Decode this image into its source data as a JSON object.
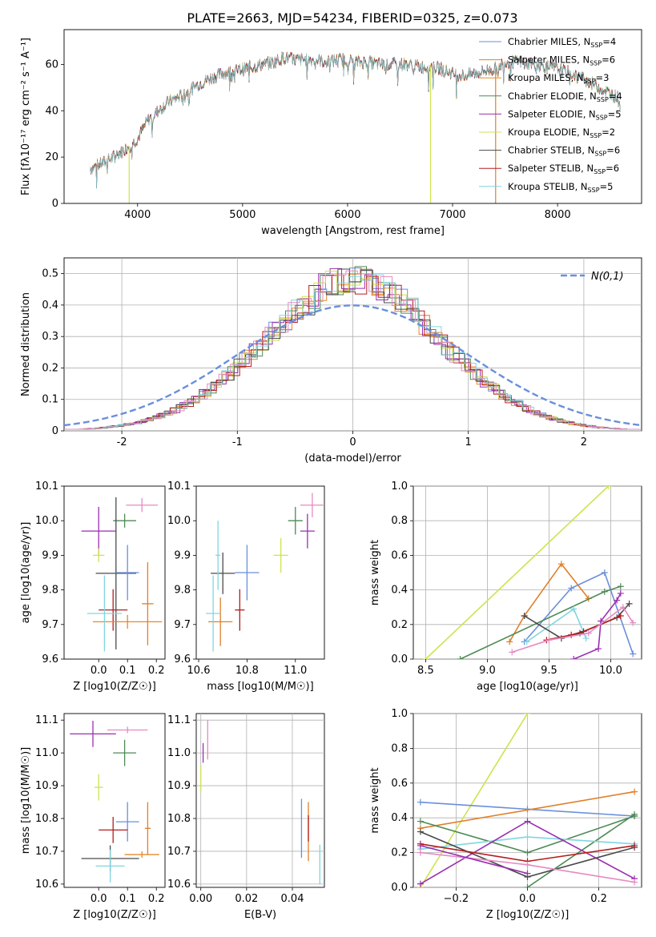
{
  "figure_title": "PLATE=2663, MJD=54234, FIBERID=0325, z=0.073",
  "colors": {
    "chabrier_miles": "#6a8fdc",
    "salpeter_miles": "#e07f2a",
    "kroupa_miles": "#e58a2a",
    "chabrier_elodie": "#4e8a55",
    "salpeter_elodie": "#9a2fb0",
    "kroupa_elodie": "#cfe34f",
    "chabrier_stelib": "#4a4a4a",
    "salpeter_stelib": "#b31e1e",
    "kroupa_stelib": "#7fd6e0",
    "pink": "#e58ac2",
    "normal": "#6a8fdc"
  },
  "chart_data": [
    {
      "type": "line",
      "id": "spectrum",
      "xlabel": "wavelength [Angstrom, rest frame]",
      "ylabel": "Flux [fλ10⁻¹⁷ erg cm⁻² s⁻¹ A⁻¹]",
      "xlim": [
        3300,
        8800
      ],
      "ylim": [
        0,
        75
      ],
      "xticks": [
        4000,
        5000,
        6000,
        7000,
        8000
      ],
      "yticks": [
        0,
        20,
        40,
        60
      ],
      "continuum": [
        [
          3550,
          15
        ],
        [
          3700,
          18
        ],
        [
          3800,
          21
        ],
        [
          3900,
          24
        ],
        [
          4000,
          28
        ],
        [
          4100,
          36
        ],
        [
          4200,
          40
        ],
        [
          4300,
          44
        ],
        [
          4400,
          46
        ],
        [
          4500,
          49
        ],
        [
          4600,
          52
        ],
        [
          4700,
          54
        ],
        [
          4800,
          56
        ],
        [
          4900,
          57
        ],
        [
          5000,
          58
        ],
        [
          5100,
          59
        ],
        [
          5200,
          60
        ],
        [
          5300,
          61
        ],
        [
          5400,
          63
        ],
        [
          5500,
          62
        ],
        [
          5600,
          62
        ],
        [
          5700,
          62
        ],
        [
          5800,
          61
        ],
        [
          5900,
          62
        ],
        [
          6000,
          62
        ],
        [
          6100,
          61
        ],
        [
          6200,
          61
        ],
        [
          6300,
          60
        ],
        [
          6400,
          60
        ],
        [
          6500,
          60
        ],
        [
          6600,
          60
        ],
        [
          6700,
          59
        ],
        [
          6800,
          59
        ],
        [
          6900,
          58
        ],
        [
          7000,
          56
        ],
        [
          7100,
          55
        ],
        [
          7200,
          56
        ],
        [
          7300,
          57
        ],
        [
          7400,
          58
        ],
        [
          7500,
          61
        ],
        [
          7700,
          61
        ],
        [
          8000,
          58
        ],
        [
          8200,
          55
        ],
        [
          8400,
          50
        ],
        [
          8600,
          45
        ]
      ],
      "series": [
        {
          "name": "Chabrier MILES, N_SSP=4"
        },
        {
          "name": "Salpeter MILES, N_SSP=6"
        },
        {
          "name": "Kroupa MILES, N_SSP=3"
        },
        {
          "name": "Chabrier ELODIE, N_SSP=4"
        },
        {
          "name": "Salpeter ELODIE, N_SSP=5"
        },
        {
          "name": "Kroupa ELODIE, N_SSP=2"
        },
        {
          "name": "Chabrier STELIB, N_SSP=6"
        },
        {
          "name": "Salpeter STELIB, N_SSP=6"
        },
        {
          "name": "Kroupa STELIB, N_SSP=5"
        }
      ],
      "legend_labels": [
        {
          "pre": "Chabrier MILES, N",
          "sub": "SSP",
          "post": "=4"
        },
        {
          "pre": "Salpeter MILES, N",
          "sub": "SSP",
          "post": "=6"
        },
        {
          "pre": "Kroupa MILES, N",
          "sub": "SSP",
          "post": "=3"
        },
        {
          "pre": "Chabrier ELODIE, N",
          "sub": "SSP",
          "post": "=4"
        },
        {
          "pre": "Salpeter ELODIE, N",
          "sub": "SSP",
          "post": "=5"
        },
        {
          "pre": "Kroupa ELODIE, N",
          "sub": "SSP",
          "post": "=2"
        },
        {
          "pre": "Chabrier STELIB, N",
          "sub": "SSP",
          "post": "=6"
        },
        {
          "pre": "Salpeter STELIB, N",
          "sub": "SSP",
          "post": "=6"
        },
        {
          "pre": "Kroupa STELIB, N",
          "sub": "SSP",
          "post": "=5"
        }
      ],
      "legend": "top-right",
      "vertical_spikes": [
        3920,
        6790,
        7410
      ]
    },
    {
      "type": "histogram",
      "id": "residuals",
      "xlabel": "(data-model)/error",
      "ylabel": "Normed distribution",
      "xlim": [
        -2.5,
        2.5
      ],
      "ylim": [
        0,
        0.55
      ],
      "xticks": [
        -2,
        -1,
        0,
        1,
        2
      ],
      "yticks": [
        0.0,
        0.1,
        0.2,
        0.3,
        0.4,
        0.5
      ],
      "grid": true,
      "reference_curve": "N(0,1)",
      "legend": "top-right"
    },
    {
      "type": "scatter",
      "id": "z-age",
      "xlabel": "Z [log10(Z/Z☉)]",
      "ylabel": "age [log10(age/yr)]",
      "xlim": [
        -0.12,
        0.23
      ],
      "ylim": [
        9.6,
        10.1
      ],
      "xticks": [
        "0.0",
        "0.1",
        "0.2"
      ],
      "yticks": [
        "9.6",
        "9.7",
        "9.8",
        "9.9",
        "10.0",
        "10.1"
      ],
      "points": [
        {
          "x": 0.15,
          "y": 10.045,
          "xe": 0.055,
          "ye": 0.02,
          "c": "pink"
        },
        {
          "x": 0.09,
          "y": 10.0,
          "xe": 0.04,
          "ye": 0.02,
          "c": "chabrier_elodie"
        },
        {
          "x": 0.0,
          "y": 9.97,
          "xe": 0.06,
          "ye": 0.07,
          "c": "salpeter_elodie"
        },
        {
          "x": 0.0,
          "y": 9.9,
          "xe": 0.02,
          "ye": 0.02,
          "c": "kroupa_elodie"
        },
        {
          "x": 0.06,
          "y": 9.848,
          "xe": 0.07,
          "ye": 0.22,
          "c": "chabrier_stelib"
        },
        {
          "x": 0.1,
          "y": 9.85,
          "xe": 0.04,
          "ye": 0.08,
          "c": "chabrier_miles"
        },
        {
          "x": 0.17,
          "y": 9.76,
          "xe": 0.02,
          "ye": 0.12,
          "c": "salpeter_miles"
        },
        {
          "x": 0.05,
          "y": 9.742,
          "xe": 0.05,
          "ye": 0.06,
          "c": "salpeter_stelib"
        },
        {
          "x": 0.1,
          "y": 9.708,
          "xe": 0.12,
          "ye": 0.02,
          "c": "kroupa_miles"
        },
        {
          "x": 0.02,
          "y": 9.732,
          "xe": 0.06,
          "ye": 0.11,
          "c": "kroupa_stelib"
        }
      ]
    },
    {
      "type": "scatter",
      "id": "mass-age",
      "xlabel": "mass [log10(M/M☉)]",
      "ylabel": "",
      "xlim": [
        10.59,
        11.12
      ],
      "ylim": [
        9.6,
        10.1
      ],
      "xticks": [
        "10.6",
        "10.8",
        "11.0"
      ],
      "yticks": [
        "9.6",
        "9.7",
        "9.8",
        "9.9",
        "10.0",
        "10.1"
      ],
      "points": [
        {
          "x": 11.07,
          "y": 10.045,
          "xe": 0.05,
          "ye": 0.035,
          "c": "pink"
        },
        {
          "x": 11.0,
          "y": 10.0,
          "xe": 0.03,
          "ye": 0.04,
          "c": "chabrier_elodie"
        },
        {
          "x": 11.05,
          "y": 9.97,
          "xe": 0.03,
          "ye": 0.05,
          "c": "salpeter_elodie"
        },
        {
          "x": 10.94,
          "y": 9.9,
          "xe": 0.03,
          "ye": 0.05,
          "c": "kroupa_elodie"
        },
        {
          "x": 10.7,
          "y": 9.848,
          "xe": 0.05,
          "ye": 0.06,
          "c": "chabrier_stelib"
        },
        {
          "x": 10.8,
          "y": 9.85,
          "xe": 0.05,
          "ye": 0.08,
          "c": "chabrier_miles"
        },
        {
          "x": 10.68,
          "y": 9.9,
          "xe": 0.01,
          "ye": 0.1,
          "c": "kroupa_stelib"
        },
        {
          "x": 10.77,
          "y": 9.742,
          "xe": 0.02,
          "ye": 0.06,
          "c": "salpeter_stelib"
        },
        {
          "x": 10.69,
          "y": 9.708,
          "xe": 0.05,
          "ye": 0.07,
          "c": "salpeter_miles"
        },
        {
          "x": 10.66,
          "y": 9.732,
          "xe": 0.03,
          "ye": 0.11,
          "c": "kroupa_stelib"
        }
      ]
    },
    {
      "type": "line",
      "id": "age-weight",
      "xlabel": "age [log10(age/yr)]",
      "ylabel": "mass weight",
      "xlim": [
        8.4,
        10.25
      ],
      "ylim": [
        0,
        1.0
      ],
      "xticks": [
        "8.5",
        "9.0",
        "9.5",
        "10.0"
      ],
      "yticks": [
        "0.0",
        "0.2",
        "0.4",
        "0.6",
        "0.8",
        "1.0"
      ],
      "grid": true,
      "series": [
        {
          "c": "kroupa_elodie",
          "x": [
            8.5,
            9.98
          ],
          "y": [
            0.0,
            1.0
          ]
        },
        {
          "c": "salpeter_miles",
          "x": [
            9.18,
            9.3,
            9.6,
            9.82
          ],
          "y": [
            0.1,
            0.25,
            0.55,
            0.35
          ]
        },
        {
          "c": "chabrier_miles",
          "x": [
            9.3,
            9.68,
            9.95,
            10.18
          ],
          "y": [
            0.1,
            0.41,
            0.5,
            0.03
          ]
        },
        {
          "c": "chabrier_elodie",
          "x": [
            8.78,
            9.95,
            10.08
          ],
          "y": [
            0.0,
            0.39,
            0.42
          ]
        },
        {
          "c": "kroupa_stelib",
          "x": [
            9.32,
            9.7,
            9.8
          ],
          "y": [
            0.1,
            0.29,
            0.12
          ]
        },
        {
          "c": "salpeter_elodie",
          "x": [
            9.7,
            9.9,
            9.92,
            10.05,
            10.08
          ],
          "y": [
            0.0,
            0.06,
            0.22,
            0.34,
            0.38
          ]
        },
        {
          "c": "chabrier_stelib",
          "x": [
            9.3,
            9.6,
            9.75,
            10.05,
            10.15
          ],
          "y": [
            0.25,
            0.12,
            0.15,
            0.24,
            0.32
          ]
        },
        {
          "c": "salpeter_stelib",
          "x": [
            9.48,
            9.68,
            9.78,
            10.08
          ],
          "y": [
            0.11,
            0.14,
            0.16,
            0.25
          ]
        },
        {
          "c": "pink",
          "x": [
            9.2,
            9.5,
            9.82,
            10.1,
            10.18
          ],
          "y": [
            0.04,
            0.11,
            0.15,
            0.3,
            0.21
          ]
        }
      ]
    },
    {
      "type": "scatter",
      "id": "z-mass",
      "xlabel": "Z [log10(Z/Z☉)]",
      "ylabel": "mass [log10(M/M☉)]",
      "xlim": [
        -0.12,
        0.23
      ],
      "ylim": [
        10.59,
        11.12
      ],
      "xticks": [
        "0.0",
        "0.1",
        "0.2"
      ],
      "yticks": [
        "10.6",
        "10.7",
        "10.8",
        "10.9",
        "11.0",
        "11.1"
      ],
      "points": [
        {
          "x": 0.1,
          "y": 11.07,
          "xe": 0.07,
          "ye": 0.01,
          "c": "pink"
        },
        {
          "x": -0.02,
          "y": 11.058,
          "xe": 0.08,
          "ye": 0.04,
          "c": "salpeter_elodie"
        },
        {
          "x": 0.09,
          "y": 11.0,
          "xe": 0.04,
          "ye": 0.04,
          "c": "chabrier_elodie"
        },
        {
          "x": 0.0,
          "y": 10.895,
          "xe": 0.015,
          "ye": 0.04,
          "c": "kroupa_elodie"
        },
        {
          "x": 0.1,
          "y": 10.79,
          "xe": 0.04,
          "ye": 0.06,
          "c": "chabrier_miles"
        },
        {
          "x": 0.05,
          "y": 10.765,
          "xe": 0.05,
          "ye": 0.04,
          "c": "salpeter_stelib"
        },
        {
          "x": 0.17,
          "y": 10.77,
          "xe": 0.01,
          "ye": 0.08,
          "c": "salpeter_miles"
        },
        {
          "x": 0.15,
          "y": 10.69,
          "xe": 0.06,
          "ye": 0.01,
          "c": "kroupa_miles"
        },
        {
          "x": 0.04,
          "y": 10.678,
          "xe": 0.1,
          "ye": 0.04,
          "c": "chabrier_stelib"
        },
        {
          "x": 0.04,
          "y": 10.655,
          "xe": 0.05,
          "ye": 0.05,
          "c": "kroupa_stelib"
        }
      ]
    },
    {
      "type": "scatter",
      "id": "ebv-mass",
      "xlabel": "E(B-V)",
      "ylabel": "",
      "xlim": [
        -0.002,
        0.054
      ],
      "ylim": [
        10.59,
        11.12
      ],
      "xticks": [
        "0.00",
        "0.02",
        "0.04"
      ],
      "yticks": [
        "10.6",
        "10.7",
        "10.8",
        "10.9",
        "11.0",
        "11.1"
      ],
      "grid": true,
      "points": [
        {
          "x": 0.003,
          "y": 11.04,
          "xe": 0.0,
          "ye": 0.06,
          "c": "pink"
        },
        {
          "x": 0.001,
          "y": 11.0,
          "xe": 0.0,
          "ye": 0.03,
          "c": "salpeter_elodie"
        },
        {
          "x": 0.0,
          "y": 10.92,
          "xe": 0.0,
          "ye": 0.04,
          "c": "kroupa_elodie"
        },
        {
          "x": 0.044,
          "y": 10.77,
          "xe": 0.0,
          "ye": 0.09,
          "c": "chabrier_miles"
        },
        {
          "x": 0.047,
          "y": 10.76,
          "xe": 0.0,
          "ye": 0.09,
          "c": "salpeter_miles"
        },
        {
          "x": 0.047,
          "y": 10.77,
          "xe": 0.0,
          "ye": 0.04,
          "c": "salpeter_stelib"
        },
        {
          "x": 0.052,
          "y": 10.66,
          "xe": 0.0,
          "ye": 0.06,
          "c": "kroupa_stelib"
        }
      ]
    },
    {
      "type": "line",
      "id": "z-weight",
      "xlabel": "Z [log10(Z/Z☉)]",
      "ylabel": "mass weight",
      "xlim": [
        -0.32,
        0.32
      ],
      "ylim": [
        0,
        1.0
      ],
      "xticks": [
        "−0.2",
        "0.0",
        "0.2"
      ],
      "yticks": [
        "0.0",
        "0.2",
        "0.4",
        "0.6",
        "0.8",
        "1.0"
      ],
      "grid": true,
      "series": [
        {
          "c": "kroupa_elodie",
          "x": [
            -0.3,
            0.0
          ],
          "y": [
            0.0,
            1.0
          ]
        },
        {
          "c": "chabrier_miles",
          "x": [
            -0.3,
            0.0,
            0.3
          ],
          "y": [
            0.49,
            0.45,
            0.41
          ]
        },
        {
          "c": "salpeter_miles",
          "x": [
            -0.3,
            0.3
          ],
          "y": [
            0.34,
            0.55
          ]
        },
        {
          "c": "chabrier_elodie",
          "x": [
            -0.3,
            0.0,
            0.3
          ],
          "y": [
            0.38,
            0.2,
            0.41
          ]
        },
        {
          "c": "chabrier_elodie",
          "x": [
            0.0,
            0.3
          ],
          "y": [
            0.0,
            0.42
          ]
        },
        {
          "c": "kroupa_stelib",
          "x": [
            -0.3,
            0.0,
            0.3
          ],
          "y": [
            0.22,
            0.29,
            0.25
          ]
        },
        {
          "c": "salpeter_elodie",
          "x": [
            -0.3,
            0.0,
            0.3
          ],
          "y": [
            0.02,
            0.38,
            0.05
          ]
        },
        {
          "c": "chabrier_stelib",
          "x": [
            -0.3,
            0.0,
            0.3
          ],
          "y": [
            0.32,
            0.06,
            0.23
          ]
        },
        {
          "c": "salpeter_stelib",
          "x": [
            -0.3,
            0.0,
            0.3
          ],
          "y": [
            0.25,
            0.15,
            0.24
          ]
        },
        {
          "c": "pink",
          "x": [
            -0.3,
            0.0,
            0.3
          ],
          "y": [
            0.2,
            0.13,
            0.03
          ]
        },
        {
          "c": "salpeter_elodie",
          "x": [
            -0.3,
            0.0
          ],
          "y": [
            0.24,
            0.08
          ]
        }
      ]
    }
  ]
}
